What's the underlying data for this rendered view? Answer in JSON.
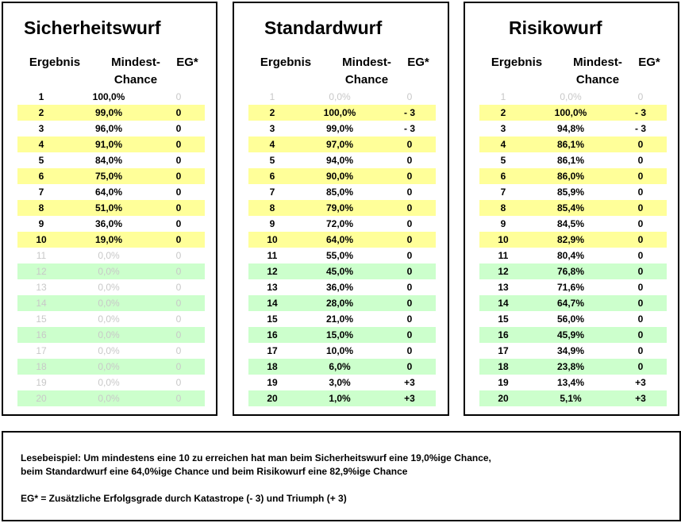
{
  "headers": {
    "ergebnis": "Ergebnis",
    "mindest1": "Mindest-",
    "mindest2": "Chance",
    "eg": "EG*"
  },
  "colors": {
    "yellow": "#ffff99",
    "green": "#ccffcc",
    "dim_text": "#c8c8c8"
  },
  "panels": [
    {
      "title": "Sicherheitswurf",
      "rows": [
        {
          "n": "1",
          "chance": "100,0%",
          "eg": "0",
          "bg": "white",
          "dim": false,
          "dim_eg": true
        },
        {
          "n": "2",
          "chance": "99,0%",
          "eg": "0",
          "bg": "yellow",
          "dim": false,
          "dim_eg": false
        },
        {
          "n": "3",
          "chance": "96,0%",
          "eg": "0",
          "bg": "white",
          "dim": false,
          "dim_eg": false
        },
        {
          "n": "4",
          "chance": "91,0%",
          "eg": "0",
          "bg": "yellow",
          "dim": false,
          "dim_eg": false
        },
        {
          "n": "5",
          "chance": "84,0%",
          "eg": "0",
          "bg": "white",
          "dim": false,
          "dim_eg": false
        },
        {
          "n": "6",
          "chance": "75,0%",
          "eg": "0",
          "bg": "yellow",
          "dim": false,
          "dim_eg": false
        },
        {
          "n": "7",
          "chance": "64,0%",
          "eg": "0",
          "bg": "white",
          "dim": false,
          "dim_eg": false
        },
        {
          "n": "8",
          "chance": "51,0%",
          "eg": "0",
          "bg": "yellow",
          "dim": false,
          "dim_eg": false
        },
        {
          "n": "9",
          "chance": "36,0%",
          "eg": "0",
          "bg": "white",
          "dim": false,
          "dim_eg": false
        },
        {
          "n": "10",
          "chance": "19,0%",
          "eg": "0",
          "bg": "yellow",
          "dim": false,
          "dim_eg": false
        },
        {
          "n": "11",
          "chance": "0,0%",
          "eg": "0",
          "bg": "white",
          "dim": true
        },
        {
          "n": "12",
          "chance": "0,0%",
          "eg": "0",
          "bg": "green",
          "dim": true
        },
        {
          "n": "13",
          "chance": "0,0%",
          "eg": "0",
          "bg": "white",
          "dim": true
        },
        {
          "n": "14",
          "chance": "0,0%",
          "eg": "0",
          "bg": "green",
          "dim": true
        },
        {
          "n": "15",
          "chance": "0,0%",
          "eg": "0",
          "bg": "white",
          "dim": true
        },
        {
          "n": "16",
          "chance": "0,0%",
          "eg": "0",
          "bg": "green",
          "dim": true
        },
        {
          "n": "17",
          "chance": "0,0%",
          "eg": "0",
          "bg": "white",
          "dim": true
        },
        {
          "n": "18",
          "chance": "0,0%",
          "eg": "0",
          "bg": "green",
          "dim": true
        },
        {
          "n": "19",
          "chance": "0,0%",
          "eg": "0",
          "bg": "white",
          "dim": true
        },
        {
          "n": "20",
          "chance": "0,0%",
          "eg": "0",
          "bg": "green",
          "dim": true
        }
      ]
    },
    {
      "title": "Standardwurf",
      "rows": [
        {
          "n": "1",
          "chance": "0,0%",
          "eg": "0",
          "bg": "white",
          "dim": true
        },
        {
          "n": "2",
          "chance": "100,0%",
          "eg": "- 3",
          "bg": "yellow",
          "dim": false
        },
        {
          "n": "3",
          "chance": "99,0%",
          "eg": "- 3",
          "bg": "white",
          "dim": false
        },
        {
          "n": "4",
          "chance": "97,0%",
          "eg": "0",
          "bg": "yellow",
          "dim": false
        },
        {
          "n": "5",
          "chance": "94,0%",
          "eg": "0",
          "bg": "white",
          "dim": false
        },
        {
          "n": "6",
          "chance": "90,0%",
          "eg": "0",
          "bg": "yellow",
          "dim": false
        },
        {
          "n": "7",
          "chance": "85,0%",
          "eg": "0",
          "bg": "white",
          "dim": false
        },
        {
          "n": "8",
          "chance": "79,0%",
          "eg": "0",
          "bg": "yellow",
          "dim": false
        },
        {
          "n": "9",
          "chance": "72,0%",
          "eg": "0",
          "bg": "white",
          "dim": false
        },
        {
          "n": "10",
          "chance": "64,0%",
          "eg": "0",
          "bg": "yellow",
          "dim": false
        },
        {
          "n": "11",
          "chance": "55,0%",
          "eg": "0",
          "bg": "white",
          "dim": false
        },
        {
          "n": "12",
          "chance": "45,0%",
          "eg": "0",
          "bg": "green",
          "dim": false
        },
        {
          "n": "13",
          "chance": "36,0%",
          "eg": "0",
          "bg": "white",
          "dim": false
        },
        {
          "n": "14",
          "chance": "28,0%",
          "eg": "0",
          "bg": "green",
          "dim": false
        },
        {
          "n": "15",
          "chance": "21,0%",
          "eg": "0",
          "bg": "white",
          "dim": false
        },
        {
          "n": "16",
          "chance": "15,0%",
          "eg": "0",
          "bg": "green",
          "dim": false
        },
        {
          "n": "17",
          "chance": "10,0%",
          "eg": "0",
          "bg": "white",
          "dim": false
        },
        {
          "n": "18",
          "chance": "6,0%",
          "eg": "0",
          "bg": "green",
          "dim": false
        },
        {
          "n": "19",
          "chance": "3,0%",
          "eg": "+3",
          "bg": "white",
          "dim": false
        },
        {
          "n": "20",
          "chance": "1,0%",
          "eg": "+3",
          "bg": "green",
          "dim": false
        }
      ]
    },
    {
      "title": "Risikowurf",
      "rows": [
        {
          "n": "1",
          "chance": "0,0%",
          "eg": "0",
          "bg": "white",
          "dim": true
        },
        {
          "n": "2",
          "chance": "100,0%",
          "eg": "- 3",
          "bg": "yellow",
          "dim": false
        },
        {
          "n": "3",
          "chance": "94,8%",
          "eg": "- 3",
          "bg": "white",
          "dim": false
        },
        {
          "n": "4",
          "chance": "86,1%",
          "eg": "0",
          "bg": "yellow",
          "dim": false
        },
        {
          "n": "5",
          "chance": "86,1%",
          "eg": "0",
          "bg": "white",
          "dim": false
        },
        {
          "n": "6",
          "chance": "86,0%",
          "eg": "0",
          "bg": "yellow",
          "dim": false
        },
        {
          "n": "7",
          "chance": "85,9%",
          "eg": "0",
          "bg": "white",
          "dim": false
        },
        {
          "n": "8",
          "chance": "85,4%",
          "eg": "0",
          "bg": "yellow",
          "dim": false
        },
        {
          "n": "9",
          "chance": "84,5%",
          "eg": "0",
          "bg": "white",
          "dim": false
        },
        {
          "n": "10",
          "chance": "82,9%",
          "eg": "0",
          "bg": "yellow",
          "dim": false
        },
        {
          "n": "11",
          "chance": "80,4%",
          "eg": "0",
          "bg": "white",
          "dim": false
        },
        {
          "n": "12",
          "chance": "76,8%",
          "eg": "0",
          "bg": "green",
          "dim": false
        },
        {
          "n": "13",
          "chance": "71,6%",
          "eg": "0",
          "bg": "white",
          "dim": false
        },
        {
          "n": "14",
          "chance": "64,7%",
          "eg": "0",
          "bg": "green",
          "dim": false
        },
        {
          "n": "15",
          "chance": "56,0%",
          "eg": "0",
          "bg": "white",
          "dim": false
        },
        {
          "n": "16",
          "chance": "45,9%",
          "eg": "0",
          "bg": "green",
          "dim": false
        },
        {
          "n": "17",
          "chance": "34,9%",
          "eg": "0",
          "bg": "white",
          "dim": false
        },
        {
          "n": "18",
          "chance": "23,8%",
          "eg": "0",
          "bg": "green",
          "dim": false
        },
        {
          "n": "19",
          "chance": "13,4%",
          "eg": "+3",
          "bg": "white",
          "dim": false
        },
        {
          "n": "20",
          "chance": "5,1%",
          "eg": "+3",
          "bg": "green",
          "dim": false
        }
      ]
    }
  ],
  "note": {
    "line1": "Lesebeispiel: Um mindestens eine 10 zu erreichen hat man beim Sicherheitswurf eine 19,0%ige Chance,",
    "line2": "beim Standardwurf eine 64,0%ige Chance und beim Risikowurf eine 82,9%ige Chance",
    "line3": "EG* = Zusätzliche Erfolgsgrade durch Katastrope (- 3) und Triumph (+ 3)"
  }
}
